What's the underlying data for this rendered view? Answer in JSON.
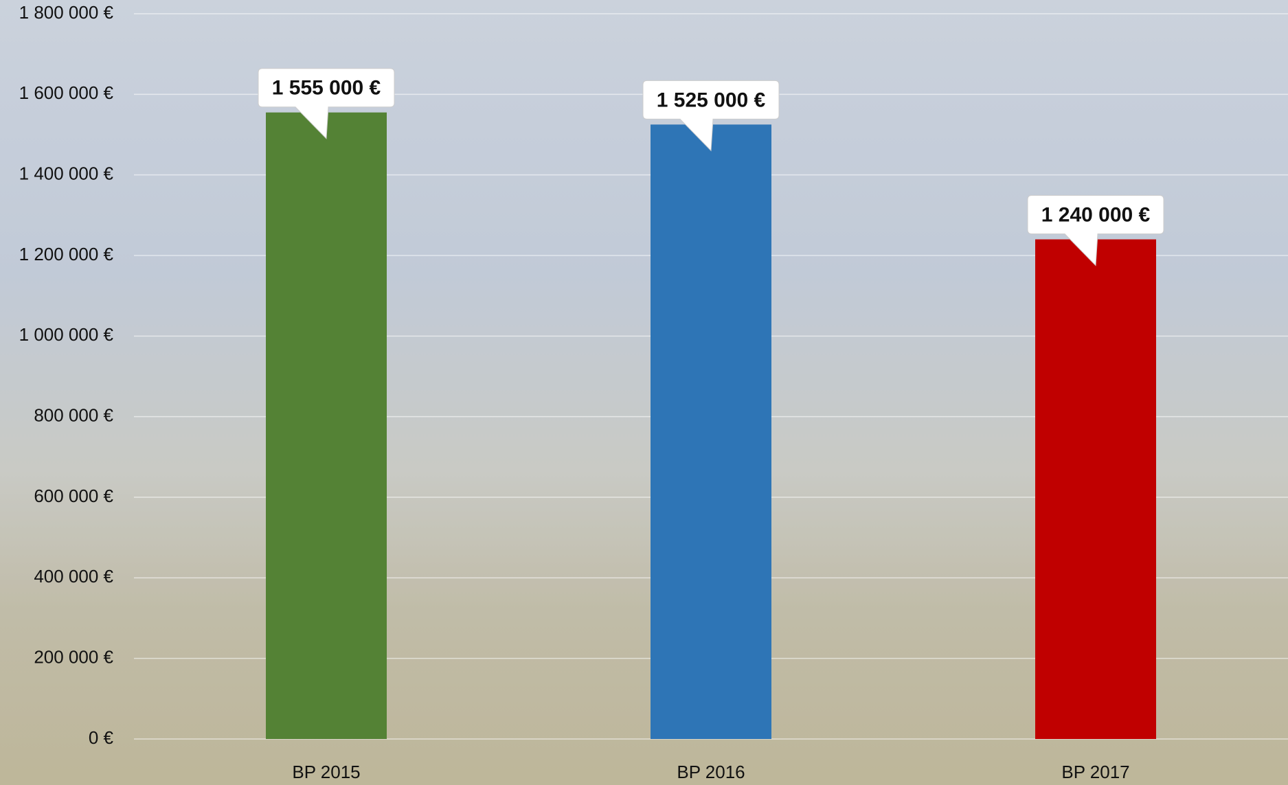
{
  "chart_data": {
    "type": "bar",
    "categories": [
      "BP 2015",
      "BP 2016",
      "BP 2017"
    ],
    "values": [
      1555000,
      1525000,
      1240000
    ],
    "value_labels": [
      "1 555 000 €",
      "1 525 000 €",
      "1 240 000 €"
    ],
    "colors": [
      "#548235",
      "#2e75b6",
      "#c00000"
    ],
    "ylim": [
      0,
      1800000
    ],
    "yticks": [
      {
        "value": 0,
        "label": "0 €"
      },
      {
        "value": 200000,
        "label": "200 000 €"
      },
      {
        "value": 400000,
        "label": "400 000 €"
      },
      {
        "value": 600000,
        "label": "600 000 €"
      },
      {
        "value": 800000,
        "label": "800 000 €"
      },
      {
        "value": 1000000,
        "label": "1 000 000 €"
      },
      {
        "value": 1200000,
        "label": "1 200 000 €"
      },
      {
        "value": 1400000,
        "label": "1 400 000 €"
      },
      {
        "value": 1600000,
        "label": "1 600 000 €"
      },
      {
        "value": 1800000,
        "label": "1 800 000 €"
      }
    ],
    "grid": true
  }
}
